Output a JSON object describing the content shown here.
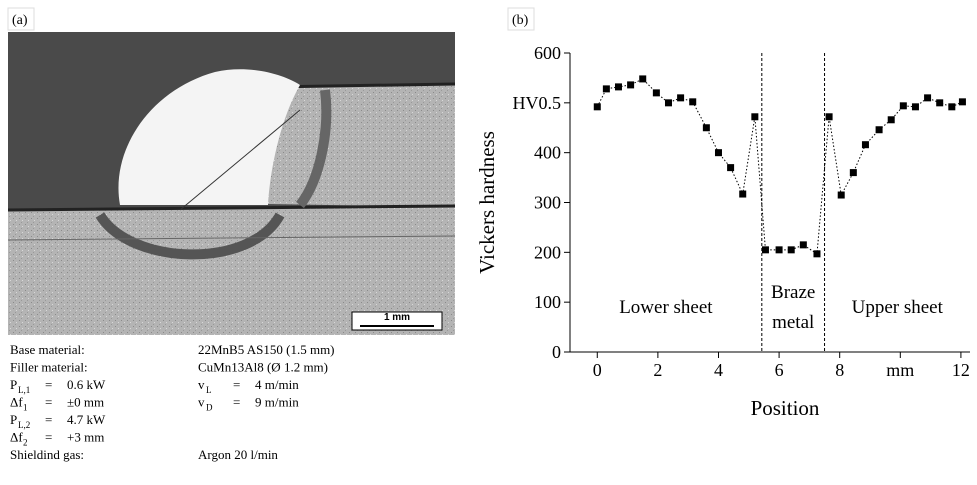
{
  "panel_a": {
    "label": "(a)",
    "scale_bar": "1 mm",
    "caption": [
      {
        "left": "Base material:",
        "right": "22MnB5 AS150 (1.5 mm)"
      },
      {
        "left": "Filler material:",
        "right": "CuMn13Al8 (Ø 1.2 mm)"
      },
      {
        "params": [
          {
            "symbol": "P",
            "sub": "L,1",
            "eq": "=",
            "value": "0.6 kW"
          },
          {
            "symbol": "v",
            "sub": "L",
            "eq": "=",
            "value": "4 m/min"
          }
        ]
      },
      {
        "params": [
          {
            "symbol": "Δf",
            "sub": "1",
            "eq": "=",
            "value": "±0 mm"
          },
          {
            "symbol": "v",
            "sub": "D",
            "eq": "=",
            "value": "9 m/min"
          }
        ]
      },
      {
        "params": [
          {
            "symbol": "P",
            "sub": "L,2",
            "eq": "=",
            "value": "4.7 kW"
          }
        ]
      },
      {
        "params": [
          {
            "symbol": "Δf",
            "sub": "2",
            "eq": "=",
            "value": "+3 mm"
          }
        ]
      },
      {
        "left": "Shieldind gas:",
        "right": "Argon 20 l/min"
      }
    ]
  },
  "chart_data": {
    "type": "line",
    "panel_label": "(b)",
    "xlabel": "Position",
    "ylabel": "Vickers hardness",
    "series": [
      {
        "color": "#000000",
        "x": [
          0,
          0.3,
          0.7,
          1.1,
          1.5,
          1.95,
          2.35,
          2.75,
          3.15,
          3.6,
          4.0,
          4.4,
          4.8,
          5.2,
          5.55,
          6.0,
          6.4,
          6.8,
          7.25,
          7.65,
          8.05,
          8.45,
          8.85,
          9.3,
          9.7,
          10.1,
          10.5,
          10.9,
          11.3,
          11.7,
          12.05
        ],
        "values": [
          492,
          528,
          532,
          536,
          548,
          520,
          500,
          510,
          502,
          450,
          400,
          370,
          317,
          472,
          205,
          205,
          205,
          215,
          197,
          472,
          315,
          360,
          416,
          446,
          466,
          494,
          492,
          510,
          500,
          492,
          502
        ]
      }
    ],
    "boundaries": [
      5.43,
      7.5
    ],
    "region_labels": [
      [
        "Lower sheet"
      ],
      [
        "Braze",
        "metal"
      ],
      [
        "Upper sheet"
      ]
    ],
    "xlim": [
      -0.9,
      12.3
    ],
    "ylim": [
      0,
      600
    ],
    "xticks": [
      0,
      2,
      4,
      6,
      8,
      {
        "value": 10,
        "label": "mm"
      },
      12
    ],
    "yticks": [
      0,
      100,
      200,
      300,
      400,
      {
        "value": 500,
        "label": "HV0.5"
      },
      600
    ]
  }
}
